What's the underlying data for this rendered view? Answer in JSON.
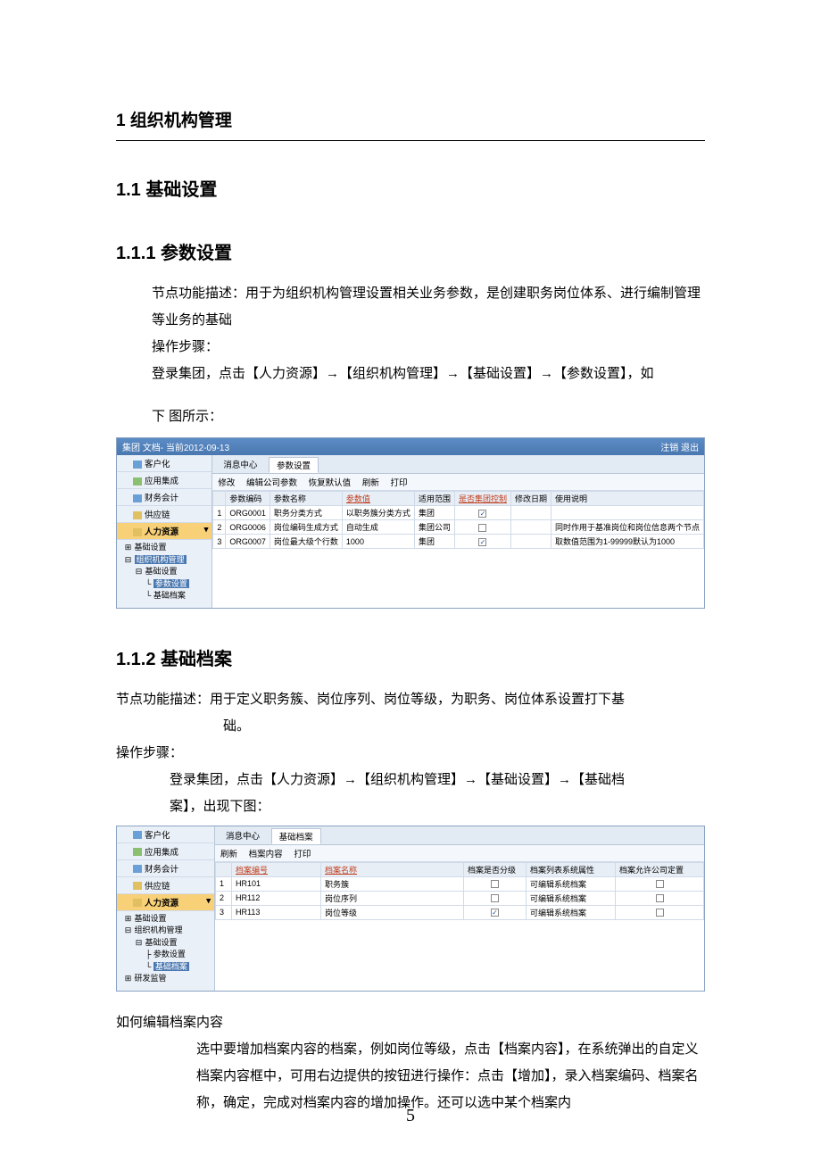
{
  "page_number": "5",
  "h1": "1 组织机构管理",
  "h2": "1.1 基础设置",
  "s111": {
    "title": "1.1.1 参数设置",
    "desc1": "节点功能描述：用于为组织机构管理设置相关业务参数，是创建职务岗位体系、进行编制管理等业务的基础",
    "steps_label": "操作步骤：",
    "step1": "登录集团，点击【人力资源】→【组织机构管理】→【基础设置】→【参数设置】，如",
    "step1b": "下 图所示："
  },
  "shot1": {
    "title_left": "集团 文档- 当前2012-09-13",
    "title_right": "注销   退出",
    "sidebar": {
      "items": [
        "客户化",
        "应用集成",
        "财务会计",
        "供应链"
      ],
      "hr_label": "人力资源",
      "sub1": "基础设置",
      "tree_root": "组织机构管理",
      "tree_c1": "基础设置",
      "tree_leaf_hl": "参数设置",
      "tree_leaf2": "基础档案"
    },
    "tabs": {
      "tab1": "消息中心",
      "tab2": "参数设置"
    },
    "toolbar": [
      "修改",
      "编辑公司参数",
      "恢复默认值",
      "刷新",
      "打印"
    ],
    "columns": [
      "",
      "参数编码",
      "参数名称",
      "参数值",
      "适用范围",
      "是否集团控制",
      "修改日期",
      "使用说明"
    ],
    "col_hl_idx": [
      3,
      5
    ],
    "rows": [
      {
        "n": "1",
        "code": "ORG0001",
        "name": "职务分类方式",
        "val": "以职务簇分类方式",
        "scope": "集团",
        "ctrl": true,
        "date": "",
        "note": ""
      },
      {
        "n": "2",
        "code": "ORG0006",
        "name": "岗位编码生成方式",
        "val": "自动生成",
        "scope": "集团公司",
        "ctrl": false,
        "date": "",
        "note": "同时作用于基准岗位和岗位信息两个节点"
      },
      {
        "n": "3",
        "code": "ORG0007",
        "name": "岗位最大级个行数",
        "val": "1000",
        "scope": "集团",
        "ctrl": true,
        "date": "",
        "note": "取数值范围为1-99999默认为1000"
      }
    ]
  },
  "s112": {
    "title": "1.1.2 基础档案",
    "desc_pre": "节点功能描述：用于定义职务簇、岗位序列、岗位等级，为职务、岗位体系设置打下基",
    "desc_end": "础。",
    "steps_label": "操作步骤：",
    "step1a": "登录集团，点击【人力资源】→【组织机构管理】→【基础设置】→【基础档",
    "step1b": "案】，出现下图："
  },
  "shot2": {
    "sidebar": {
      "items": [
        "客户化",
        "应用集成",
        "财务会计",
        "供应链"
      ],
      "hr_label": "人力资源",
      "sub1": "基础设置",
      "tree_root": "组织机构管理",
      "tree_c1": "基础设置",
      "tree_leaf1": "参数设置",
      "tree_leaf_hl": "基础档案",
      "tree_ext": "研发监管"
    },
    "tabs": {
      "tab1": "消息中心",
      "tab2": "基础档案"
    },
    "toolbar": [
      "刷新",
      "档案内容",
      "打印"
    ],
    "columns": [
      "",
      "档案编号",
      "档案名称",
      "档案是否分级",
      "档案列表系统属性",
      "档案允许公司定置"
    ],
    "col_hl_idx": [
      1,
      2
    ],
    "rows": [
      {
        "n": "1",
        "code": "HR101",
        "name": "职务簇",
        "lvl": false,
        "attr": "可编辑系统档案",
        "allow": false
      },
      {
        "n": "2",
        "code": "HR112",
        "name": "岗位序列",
        "lvl": false,
        "attr": "可编辑系统档案",
        "allow": false
      },
      {
        "n": "3",
        "code": "HR113",
        "name": "岗位等级",
        "lvl": true,
        "attr": "可编辑系统档案",
        "allow": false
      }
    ]
  },
  "tail": {
    "q": "如何编辑档案内容",
    "p1": "选中要增加档案内容的档案，例如岗位等级，点击【档案内容】，在系统弹出的自定义档案内容框中，可用右边提供的按钮进行操作：点击【增加】，录入档案编码、档案名称，确定，完成对档案内容的增加操作。还可以选中某个档案内"
  }
}
